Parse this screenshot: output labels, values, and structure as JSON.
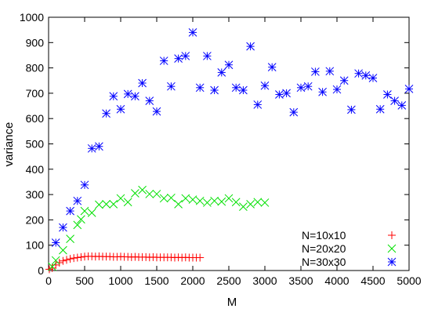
{
  "chart_data": {
    "type": "scatter",
    "xlabel": "M",
    "ylabel": "variance",
    "xlim": [
      0,
      5000
    ],
    "ylim": [
      0,
      1000
    ],
    "x_ticks": [
      0,
      500,
      1000,
      1500,
      2000,
      2500,
      3000,
      3500,
      4000,
      4500,
      5000
    ],
    "y_ticks": [
      0,
      100,
      200,
      300,
      400,
      500,
      600,
      700,
      800,
      900,
      1000
    ],
    "legend_position": "bottom-right",
    "grid": false,
    "series": [
      {
        "name": "N=10x10",
        "marker": "plus",
        "color": "#ff0000",
        "points": [
          [
            10,
            5
          ],
          [
            50,
            10
          ],
          [
            100,
            22
          ],
          [
            150,
            31
          ],
          [
            200,
            38
          ],
          [
            250,
            42
          ],
          [
            300,
            46
          ],
          [
            350,
            49
          ],
          [
            400,
            51
          ],
          [
            450,
            53
          ],
          [
            500,
            55
          ],
          [
            550,
            56
          ],
          [
            600,
            56
          ],
          [
            650,
            55
          ],
          [
            700,
            56
          ],
          [
            750,
            55
          ],
          [
            800,
            55
          ],
          [
            850,
            55
          ],
          [
            900,
            54
          ],
          [
            950,
            54
          ],
          [
            1000,
            55
          ],
          [
            1050,
            54
          ],
          [
            1100,
            54
          ],
          [
            1150,
            53
          ],
          [
            1200,
            54
          ],
          [
            1250,
            53
          ],
          [
            1300,
            53
          ],
          [
            1350,
            53
          ],
          [
            1400,
            52
          ],
          [
            1450,
            53
          ],
          [
            1500,
            52
          ],
          [
            1550,
            52
          ],
          [
            1600,
            52
          ],
          [
            1650,
            52
          ],
          [
            1700,
            52
          ],
          [
            1750,
            51
          ],
          [
            1800,
            52
          ],
          [
            1850,
            51
          ],
          [
            1900,
            52
          ],
          [
            1950,
            51
          ],
          [
            2000,
            51
          ],
          [
            2050,
            51
          ],
          [
            2100,
            51
          ]
        ]
      },
      {
        "name": "N=20x20",
        "marker": "cross",
        "color": "#00e000",
        "points": [
          [
            50,
            15
          ],
          [
            100,
            40
          ],
          [
            200,
            80
          ],
          [
            300,
            125
          ],
          [
            400,
            180
          ],
          [
            450,
            202
          ],
          [
            500,
            235
          ],
          [
            600,
            228
          ],
          [
            700,
            260
          ],
          [
            800,
            262
          ],
          [
            900,
            262
          ],
          [
            1000,
            285
          ],
          [
            1100,
            270
          ],
          [
            1200,
            305
          ],
          [
            1300,
            318
          ],
          [
            1400,
            302
          ],
          [
            1500,
            302
          ],
          [
            1600,
            285
          ],
          [
            1700,
            287
          ],
          [
            1800,
            262
          ],
          [
            1900,
            285
          ],
          [
            2000,
            280
          ],
          [
            2100,
            275
          ],
          [
            2200,
            268
          ],
          [
            2300,
            275
          ],
          [
            2400,
            272
          ],
          [
            2500,
            285
          ],
          [
            2600,
            270
          ],
          [
            2700,
            252
          ],
          [
            2800,
            262
          ],
          [
            2900,
            270
          ],
          [
            3000,
            268
          ]
        ]
      },
      {
        "name": "N=30x30",
        "marker": "star",
        "color": "#0000ff",
        "points": [
          [
            100,
            110
          ],
          [
            200,
            170
          ],
          [
            300,
            235
          ],
          [
            400,
            275
          ],
          [
            500,
            338
          ],
          [
            600,
            482
          ],
          [
            700,
            490
          ],
          [
            800,
            620
          ],
          [
            900,
            688
          ],
          [
            1000,
            637
          ],
          [
            1100,
            697
          ],
          [
            1200,
            688
          ],
          [
            1300,
            740
          ],
          [
            1400,
            670
          ],
          [
            1500,
            628
          ],
          [
            1600,
            828
          ],
          [
            1700,
            727
          ],
          [
            1800,
            837
          ],
          [
            1900,
            847
          ],
          [
            2000,
            940
          ],
          [
            2100,
            722
          ],
          [
            2200,
            847
          ],
          [
            2300,
            712
          ],
          [
            2400,
            782
          ],
          [
            2500,
            812
          ],
          [
            2600,
            722
          ],
          [
            2700,
            712
          ],
          [
            2800,
            885
          ],
          [
            2900,
            655
          ],
          [
            3000,
            730
          ],
          [
            3100,
            803
          ],
          [
            3200,
            695
          ],
          [
            3300,
            700
          ],
          [
            3400,
            625
          ],
          [
            3500,
            722
          ],
          [
            3600,
            727
          ],
          [
            3700,
            785
          ],
          [
            3800,
            705
          ],
          [
            3900,
            787
          ],
          [
            4000,
            715
          ],
          [
            4100,
            750
          ],
          [
            4200,
            635
          ],
          [
            4300,
            778
          ],
          [
            4400,
            770
          ],
          [
            4500,
            760
          ],
          [
            4600,
            637
          ],
          [
            4700,
            695
          ],
          [
            4800,
            670
          ],
          [
            4900,
            652
          ],
          [
            5000,
            717
          ]
        ]
      }
    ]
  }
}
